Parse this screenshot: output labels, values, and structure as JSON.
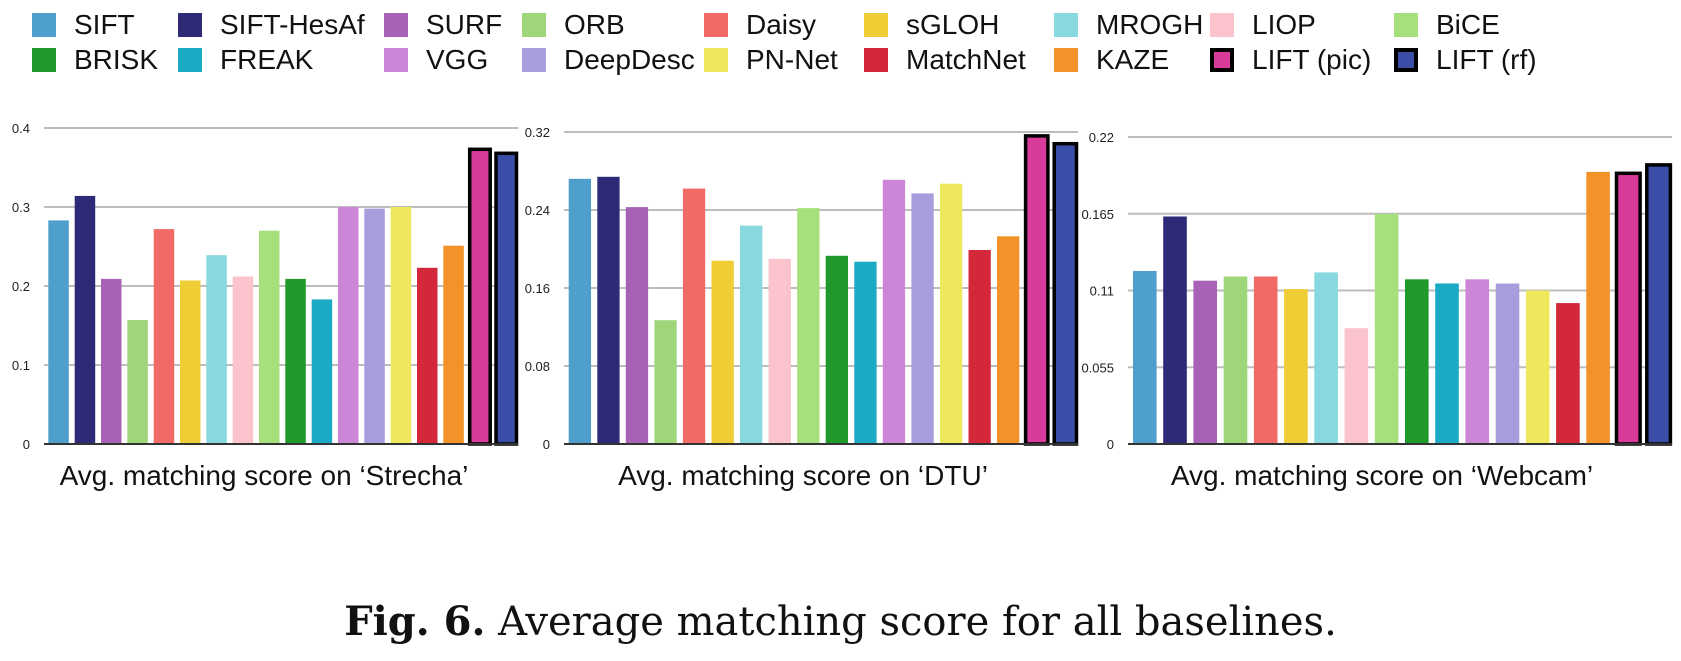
{
  "legend": [
    {
      "key": "SIFT",
      "label": "SIFT",
      "color": "#4f9fcd",
      "bold": false
    },
    {
      "key": "SIFT-HesAf",
      "label": "SIFT-HesAf",
      "color": "#2f2a78",
      "bold": false
    },
    {
      "key": "SURF",
      "label": "SURF",
      "color": "#a862b5",
      "bold": false
    },
    {
      "key": "ORB",
      "label": "ORB",
      "color": "#9fd67a",
      "bold": false
    },
    {
      "key": "Daisy",
      "label": "Daisy",
      "color": "#f26a66",
      "bold": false
    },
    {
      "key": "sGLOH",
      "label": "sGLOH",
      "color": "#eecd35",
      "bold": false
    },
    {
      "key": "MROGH",
      "label": "MROGH",
      "color": "#88d8df",
      "bold": false
    },
    {
      "key": "LIOP",
      "label": "LIOP",
      "color": "#fbc3cc",
      "bold": false
    },
    {
      "key": "BiCE",
      "label": "BiCE",
      "color": "#a5e07c",
      "bold": false
    },
    {
      "key": "BRISK",
      "label": "BRISK",
      "color": "#1f9a2a",
      "bold": false
    },
    {
      "key": "FREAK",
      "label": "FREAK",
      "color": "#1aaac6",
      "bold": false
    },
    {
      "key": "VGG",
      "label": "VGG",
      "color": "#cc86d8",
      "bold": false
    },
    {
      "key": "DeepDesc",
      "label": "DeepDesc",
      "color": "#a99cdd",
      "bold": false
    },
    {
      "key": "PN-Net",
      "label": "PN-Net",
      "color": "#eee85c",
      "bold": false
    },
    {
      "key": "MatchNet",
      "label": "MatchNet",
      "color": "#d2283a",
      "bold": false
    },
    {
      "key": "KAZE",
      "label": "KAZE",
      "color": "#f4922a",
      "bold": false
    },
    {
      "key": "LIFT (pic)",
      "label": "LIFT (pic)",
      "color": "#d83b9a",
      "bold": true
    },
    {
      "key": "LIFT (rf)",
      "label": "LIFT (rf)",
      "color": "#3a4ea7",
      "bold": true
    }
  ],
  "chart_data": [
    {
      "type": "bar",
      "title": "Avg. matching score on ‘Strecha’",
      "xlabel": "",
      "ylabel": "",
      "ylim": [
        0,
        0.4
      ],
      "yticks": [
        0,
        0.1,
        0.2,
        0.3,
        0.4
      ],
      "ytick_labels": [
        "0",
        "0.1",
        "0.2",
        "0.3",
        "0.4"
      ],
      "grid": true,
      "categories": [
        "SIFT",
        "SIFT-HesAf",
        "SURF",
        "ORB",
        "Daisy",
        "sGLOH",
        "MROGH",
        "LIOP",
        "BiCE",
        "BRISK",
        "FREAK",
        "VGG",
        "DeepDesc",
        "PN-Net",
        "MatchNet",
        "KAZE",
        "LIFT (pic)",
        "LIFT (rf)"
      ],
      "values": [
        0.283,
        0.314,
        0.209,
        0.157,
        0.272,
        0.207,
        0.239,
        0.212,
        0.27,
        0.209,
        0.183,
        0.3,
        0.298,
        0.3,
        0.223,
        0.251,
        0.373,
        0.368
      ]
    },
    {
      "type": "bar",
      "title": "Avg. matching score on ‘DTU’",
      "xlabel": "",
      "ylabel": "",
      "ylim": [
        0,
        0.32
      ],
      "yticks": [
        0,
        0.08,
        0.16,
        0.24,
        0.32
      ],
      "ytick_labels": [
        "0",
        "0.08",
        "0.16",
        "0.24",
        "0.32"
      ],
      "grid": true,
      "categories": [
        "SIFT",
        "SIFT-HesAf",
        "SURF",
        "ORB",
        "Daisy",
        "sGLOH",
        "MROGH",
        "LIOP",
        "BiCE",
        "BRISK",
        "FREAK",
        "VGG",
        "DeepDesc",
        "PN-Net",
        "MatchNet",
        "KAZE",
        "LIFT (pic)",
        "LIFT (rf)"
      ],
      "values": [
        0.272,
        0.274,
        0.243,
        0.127,
        0.262,
        0.188,
        0.224,
        0.19,
        0.242,
        0.193,
        0.187,
        0.271,
        0.257,
        0.267,
        0.199,
        0.213,
        0.316,
        0.308
      ]
    },
    {
      "type": "bar",
      "title": "Avg. matching score on ‘Webcam’",
      "xlabel": "",
      "ylabel": "",
      "ylim": [
        0,
        0.22
      ],
      "yticks": [
        0,
        0.055,
        0.11,
        0.165,
        0.22
      ],
      "ytick_labels": [
        "0",
        "0.055",
        "0.11",
        "0.165",
        "0.22"
      ],
      "grid": true,
      "categories": [
        "SIFT",
        "SIFT-HesAf",
        "SURF",
        "ORB",
        "Daisy",
        "sGLOH",
        "MROGH",
        "LIOP",
        "BiCE",
        "BRISK",
        "FREAK",
        "VGG",
        "DeepDesc",
        "PN-Net",
        "MatchNet",
        "KAZE",
        "LIFT (pic)",
        "LIFT (rf)"
      ],
      "series_keys": [
        "SIFT",
        "SIFT-HesAf",
        "SURF",
        "ORB",
        "Daisy",
        "sGLOH",
        "MROGH",
        "LIOP",
        "BiCE",
        "BRISK",
        "FREAK",
        "VGG",
        "DeepDesc",
        "PN-Net",
        "MatchNet",
        "KAZE",
        "LIFT (pic)",
        "LIFT (rf)"
      ],
      "values": [
        0.124,
        0.163,
        0.117,
        0.12,
        0.12,
        0.111,
        0.123,
        0.083,
        0.165,
        0.118,
        0.115,
        0.118,
        0.115,
        0.11,
        0.101,
        0.195,
        0.194,
        0.2
      ]
    }
  ],
  "caption": {
    "fig_label": "Fig. 6.",
    "text": "Average matching score for all baselines."
  }
}
